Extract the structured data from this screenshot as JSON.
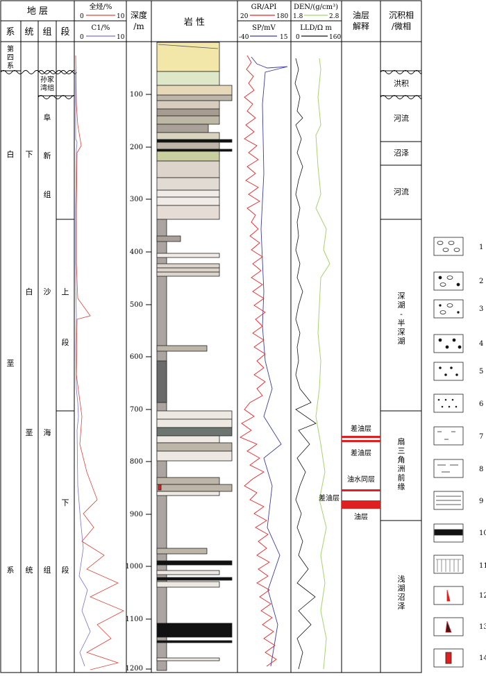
{
  "header": {
    "strata": "地 层",
    "sys": "系",
    "series": "统",
    "formation": "组",
    "member": "段",
    "logs1_title": "全烃/%",
    "logs1_min": "0",
    "logs1_max": "10",
    "logs1b_title": "C1/%",
    "logs1b_min": "0",
    "logs1b_max": "10",
    "depth": "深度",
    "depth_unit": "/m",
    "lithology": "岩 性",
    "gr_title": "GR/API",
    "gr_min": "20",
    "gr_max": "180",
    "sp_title": "SP/mV",
    "sp_min": "-40",
    "sp_max": "15",
    "den_title": "DEN/(g/cm³)",
    "den_min": "1.8",
    "den_max": "2.8",
    "lld_title": "LLD/Ω m",
    "lld_min": "0",
    "lld_max": "160",
    "oil_title1": "油层",
    "oil_title2": "解释",
    "facies_title1": "沉积相",
    "facies_title2": "/微相"
  },
  "strata": {
    "quaternary": [
      "第",
      "四",
      "系"
    ],
    "system_chars": [
      "白",
      "垩",
      "系"
    ],
    "series_chars": [
      "下",
      "白",
      "垩",
      "统"
    ],
    "sunjiawan": [
      "孙家",
      "湾组"
    ],
    "fuxin": [
      "阜",
      "新",
      "组"
    ],
    "shahai": [
      "沙",
      "海",
      "组"
    ],
    "upper": [
      "上",
      "段"
    ],
    "lower": [
      "下",
      "段"
    ]
  },
  "depth_ticks": [
    "100",
    "200",
    "300",
    "400",
    "500",
    "600",
    "700",
    "800",
    "900",
    "1000",
    "1100",
    "1200"
  ],
  "oil": {
    "l1": "差油层",
    "l2": "差油层",
    "l3": "油水同层",
    "l4": "差油层",
    "l5": "油层"
  },
  "facies": {
    "f1": "洪积",
    "f2": "河流",
    "f3": "沼泽",
    "f4": "河流",
    "f5": [
      "深",
      "湖",
      "-",
      "半",
      "深",
      "湖"
    ],
    "f6": [
      "扇",
      "三",
      "角",
      "洲",
      "前",
      "缘"
    ],
    "f7": [
      "浅",
      "湖",
      "沼",
      "泽"
    ]
  },
  "legend": [
    "1",
    "2",
    "3",
    "4",
    "5",
    "6",
    "7",
    "8",
    "9",
    "10",
    "11",
    "12",
    "13",
    "14"
  ],
  "colors": {
    "gr": "#e8252a",
    "sp": "#3b3b9e",
    "den": "#a8d36a",
    "lld": "#111111",
    "gas": "#d9433c",
    "c1": "#7a6fd1",
    "oil": "#e02020"
  }
}
